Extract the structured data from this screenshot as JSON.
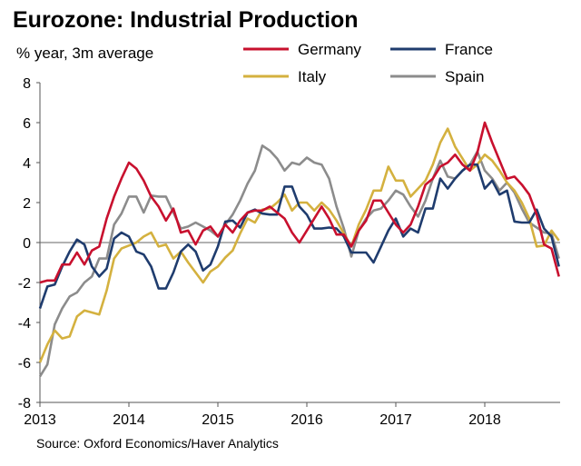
{
  "chart_data": {
    "type": "line",
    "title": "Eurozone: Industrial Production",
    "subtitle": "% year, 3m average",
    "source": "Source: Oxford Economics/Haver Analytics",
    "x_start": "2013-01",
    "x_end": "2018-11",
    "x_frequency": "monthly",
    "x_ticks": [
      "2013",
      "2014",
      "2015",
      "2016",
      "2017",
      "2018"
    ],
    "ylim": [
      -8,
      8
    ],
    "y_ticks": [
      8,
      6,
      4,
      2,
      0,
      -2,
      -4,
      -6,
      -8
    ],
    "grid": false,
    "legend": "top",
    "series": [
      {
        "name": "Germany",
        "color": "#c8102e",
        "values": [
          -2.0,
          -1.9,
          -1.9,
          -1.1,
          -1.1,
          -0.5,
          -1.1,
          -0.4,
          -0.2,
          1.2,
          2.3,
          3.2,
          4.0,
          3.7,
          3.1,
          2.3,
          1.8,
          1.1,
          1.7,
          0.5,
          0.6,
          -0.1,
          0.6,
          0.8,
          0.3,
          0.9,
          0.5,
          1.1,
          1.5,
          1.6,
          1.6,
          1.8,
          1.5,
          1.2,
          0.5,
          0.0,
          0.6,
          1.2,
          1.8,
          1.2,
          0.4,
          0.4,
          -0.2,
          0.6,
          1.1,
          2.1,
          2.1,
          1.5,
          0.9,
          0.5,
          0.9,
          1.8,
          2.9,
          3.2,
          3.8,
          4.0,
          4.4,
          3.9,
          3.6,
          4.5,
          6.0,
          5.0,
          4.1,
          3.2,
          3.3,
          2.9,
          2.4,
          1.4,
          -0.1,
          -0.3,
          -1.7
        ]
      },
      {
        "name": "France",
        "color": "#1f3c6e",
        "values": [
          -3.3,
          -2.2,
          -2.1,
          -1.2,
          -0.45,
          0.15,
          -0.1,
          -1.2,
          -1.7,
          -1.3,
          0.2,
          0.5,
          0.3,
          -0.45,
          -0.6,
          -1.2,
          -2.3,
          -2.3,
          -1.5,
          -0.45,
          -0.1,
          -0.45,
          -1.4,
          -1.1,
          -0.2,
          1.05,
          1.1,
          0.75,
          1.5,
          1.65,
          1.45,
          1.4,
          1.4,
          2.8,
          2.8,
          1.8,
          1.4,
          0.7,
          0.7,
          0.75,
          0.7,
          0.3,
          -0.5,
          -0.5,
          -0.5,
          -1.0,
          -0.2,
          0.6,
          1.2,
          0.3,
          0.7,
          0.5,
          1.7,
          1.7,
          3.2,
          2.7,
          3.2,
          3.6,
          3.9,
          3.9,
          2.7,
          3.1,
          2.4,
          2.6,
          1.05,
          1.0,
          1.0,
          1.65,
          0.7,
          0.3,
          -1.2
        ]
      },
      {
        "name": "Italy",
        "color": "#d4b13f",
        "values": [
          -6.0,
          -5.1,
          -4.4,
          -4.8,
          -4.7,
          -3.7,
          -3.4,
          -3.5,
          -3.6,
          -2.4,
          -0.8,
          -0.3,
          -0.15,
          0.0,
          0.3,
          0.5,
          -0.2,
          -0.1,
          -0.8,
          -0.45,
          -1.0,
          -1.5,
          -2.0,
          -1.45,
          -1.2,
          -0.75,
          -0.4,
          0.45,
          1.2,
          1.0,
          1.65,
          1.7,
          2.0,
          2.4,
          1.6,
          2.0,
          2.0,
          1.6,
          2.0,
          1.65,
          1.1,
          0.45,
          -0.2,
          0.9,
          1.65,
          2.6,
          2.6,
          3.8,
          3.1,
          3.1,
          2.3,
          2.7,
          3.1,
          3.9,
          5.0,
          5.7,
          4.8,
          4.2,
          3.6,
          3.9,
          4.4,
          4.1,
          3.6,
          3.0,
          2.6,
          2.0,
          1.2,
          -0.2,
          -0.15,
          0.6,
          0.1
        ]
      },
      {
        "name": "Spain",
        "color": "#8c8c8c",
        "values": [
          -6.7,
          -6.1,
          -4.1,
          -3.3,
          -2.7,
          -2.5,
          -2.0,
          -1.7,
          -0.8,
          -0.8,
          0.9,
          1.45,
          2.3,
          2.3,
          1.5,
          2.35,
          2.3,
          2.3,
          1.5,
          0.7,
          0.8,
          1.0,
          0.8,
          0.6,
          0.3,
          0.9,
          1.4,
          2.1,
          2.95,
          3.6,
          4.85,
          4.6,
          4.2,
          3.6,
          4.0,
          3.9,
          4.25,
          4.0,
          3.9,
          3.2,
          1.8,
          0.7,
          -0.7,
          0.6,
          1.2,
          1.6,
          1.7,
          2.1,
          2.6,
          2.4,
          1.8,
          1.3,
          2.1,
          3.2,
          4.1,
          3.3,
          3.2,
          3.6,
          3.9,
          4.55,
          3.6,
          3.2,
          2.6,
          3.0,
          2.5,
          1.7,
          1.0,
          0.75,
          0.5,
          0.45,
          -0.8
        ]
      }
    ]
  }
}
